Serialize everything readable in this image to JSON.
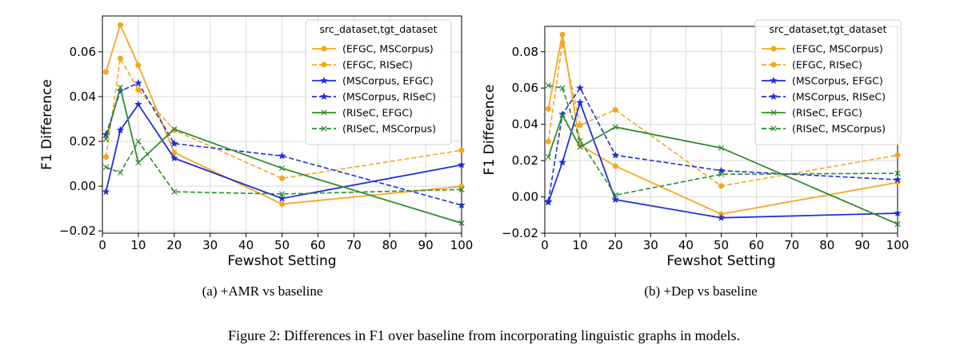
{
  "figure_caption": "Figure 2: Differences in F1 over baseline from incorporating linguistic graphs in models.",
  "colors": {
    "orange": "#f5a623",
    "blue": "#1f2fd6",
    "green": "#2e8b2e",
    "grid": "#d9d9d9"
  },
  "chart_data": [
    {
      "type": "line",
      "caption": "(a) +AMR vs baseline",
      "xlabel": "Fewshot Setting",
      "ylabel": "F1 Difference",
      "xlim": [
        0,
        100
      ],
      "ylim": [
        -0.021,
        0.076
      ],
      "xticks": [
        0,
        10,
        20,
        30,
        40,
        50,
        60,
        70,
        80,
        90,
        100
      ],
      "yticks": [
        -0.02,
        0.0,
        0.02,
        0.04,
        0.06
      ],
      "ytick_labels": [
        "−0.02",
        "0.00",
        "0.02",
        "0.04",
        "0.06"
      ],
      "grid": true,
      "legend_title": "src_dataset,tgt_dataset",
      "legend_position": "top-right",
      "x": [
        1,
        5,
        10,
        20,
        50,
        100
      ],
      "series": [
        {
          "name": "(EFGC, MSCorpus)",
          "color": "orange",
          "dash": "solid",
          "marker": "circle",
          "values": [
            0.051,
            0.072,
            0.054,
            0.015,
            -0.008,
            -0.0001
          ]
        },
        {
          "name": "(EFGC, RISeC)",
          "color": "orange",
          "dash": "dashed",
          "marker": "circle",
          "values": [
            0.013,
            0.057,
            0.043,
            0.025,
            0.0035,
            0.016
          ]
        },
        {
          "name": "(MSCorpus, EFGC)",
          "color": "blue",
          "dash": "solid",
          "marker": "star",
          "values": [
            -0.0025,
            0.025,
            0.0365,
            0.0125,
            -0.0055,
            0.0095
          ]
        },
        {
          "name": "(MSCorpus, RISeC)",
          "color": "blue",
          "dash": "dashed",
          "marker": "star",
          "values": [
            0.023,
            0.0425,
            0.046,
            0.019,
            0.0135,
            -0.0085
          ]
        },
        {
          "name": "(RISeC, EFGC)",
          "color": "green",
          "dash": "solid",
          "marker": "x",
          "values": [
            0.021,
            0.044,
            0.0105,
            0.0255,
            0.008,
            -0.0165
          ]
        },
        {
          "name": "(RISeC, MSCorpus)",
          "color": "green",
          "dash": "dashed",
          "marker": "x",
          "values": [
            0.0085,
            0.006,
            0.02,
            -0.0025,
            -0.0035,
            -0.0015
          ]
        }
      ]
    },
    {
      "type": "line",
      "caption": "(b) +Dep vs baseline",
      "xlabel": "Fewshot Setting",
      "ylabel": "F1 Difference",
      "xlim": [
        0,
        100
      ],
      "ylim": [
        -0.02,
        0.094
      ],
      "xticks": [
        0,
        10,
        20,
        30,
        40,
        50,
        60,
        70,
        80,
        90,
        100
      ],
      "yticks": [
        -0.02,
        0.0,
        0.02,
        0.04,
        0.06,
        0.08
      ],
      "ytick_labels": [
        "−0.02",
        "0.00",
        "0.02",
        "0.04",
        "0.06",
        "0.08"
      ],
      "grid": true,
      "legend_title": "src_dataset,tgt_dataset",
      "legend_position": "top-right",
      "x": [
        1,
        5,
        10,
        20,
        50,
        100
      ],
      "series": [
        {
          "name": "(EFGC, MSCorpus)",
          "color": "orange",
          "dash": "solid",
          "marker": "circle",
          "values": [
            0.0485,
            0.0895,
            0.0285,
            0.017,
            -0.0095,
            0.008
          ]
        },
        {
          "name": "(EFGC, RISeC)",
          "color": "orange",
          "dash": "dashed",
          "marker": "circle",
          "values": [
            0.0305,
            0.085,
            0.0395,
            0.048,
            0.006,
            0.023
          ]
        },
        {
          "name": "(MSCorpus, EFGC)",
          "color": "blue",
          "dash": "solid",
          "marker": "star",
          "values": [
            -0.003,
            0.019,
            0.052,
            -0.0015,
            -0.0115,
            -0.009
          ]
        },
        {
          "name": "(MSCorpus, RISeC)",
          "color": "blue",
          "dash": "dashed",
          "marker": "star",
          "values": [
            -0.0025,
            0.0455,
            0.06,
            0.023,
            0.0145,
            0.0095
          ]
        },
        {
          "name": "(RISeC, EFGC)",
          "color": "green",
          "dash": "solid",
          "marker": "x",
          "values": [
            0.022,
            0.045,
            0.0275,
            0.0385,
            0.027,
            -0.015
          ]
        },
        {
          "name": "(RISeC, MSCorpus)",
          "color": "green",
          "dash": "dashed",
          "marker": "x",
          "values": [
            0.0615,
            0.06,
            0.031,
            0.001,
            0.0125,
            0.013
          ]
        }
      ]
    }
  ]
}
